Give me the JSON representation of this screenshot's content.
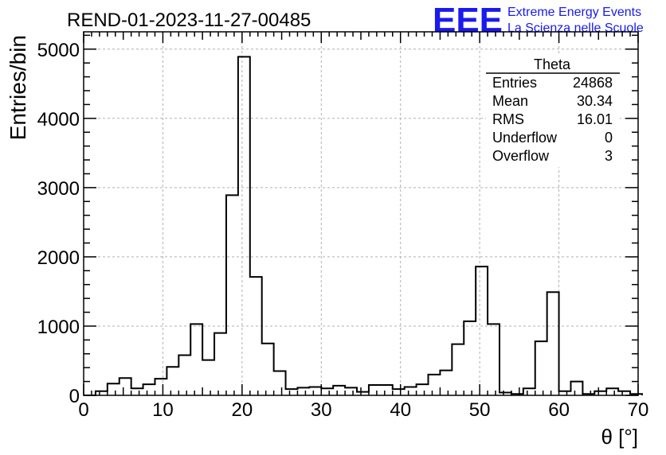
{
  "chart_data": {
    "type": "bar",
    "title": "REND-01-2023-11-27-00485",
    "xlabel": "θ [°]",
    "ylabel": "Entries/bin",
    "xlim": [
      0,
      70
    ],
    "ylim": [
      0,
      5250
    ],
    "bin_width": 1.5,
    "bin_edges_start": 0,
    "x_ticks": [
      "0",
      "10",
      "20",
      "30",
      "40",
      "50",
      "60",
      "70"
    ],
    "y_ticks": [
      "0",
      "1000",
      "2000",
      "3000",
      "4000",
      "5000"
    ],
    "grid": true,
    "values": [
      0,
      60,
      170,
      250,
      100,
      160,
      240,
      410,
      580,
      1030,
      510,
      900,
      2890,
      4890,
      1710,
      750,
      350,
      90,
      110,
      120,
      100,
      140,
      110,
      50,
      150,
      150,
      90,
      120,
      160,
      300,
      360,
      740,
      1070,
      1860,
      1030,
      40,
      20,
      100,
      780,
      1490,
      60,
      200,
      20,
      60,
      100,
      60,
      20
    ],
    "stats_box": {
      "name": "Theta",
      "rows": [
        {
          "label": "Entries",
          "value": "24868"
        },
        {
          "label": "Mean",
          "value": "30.34"
        },
        {
          "label": "RMS",
          "value": "16.01"
        },
        {
          "label": "Underflow",
          "value": "0"
        },
        {
          "label": "Overflow",
          "value": "3"
        }
      ]
    }
  },
  "logo": {
    "text": "EEE",
    "line1": "Extreme Energy Events",
    "line2": "La Scienza nelle Scuole",
    "color": "#1a1aee"
  },
  "colors": {
    "histogram": "#000000",
    "grid": "#b0b0b0",
    "frame": "#000000"
  }
}
